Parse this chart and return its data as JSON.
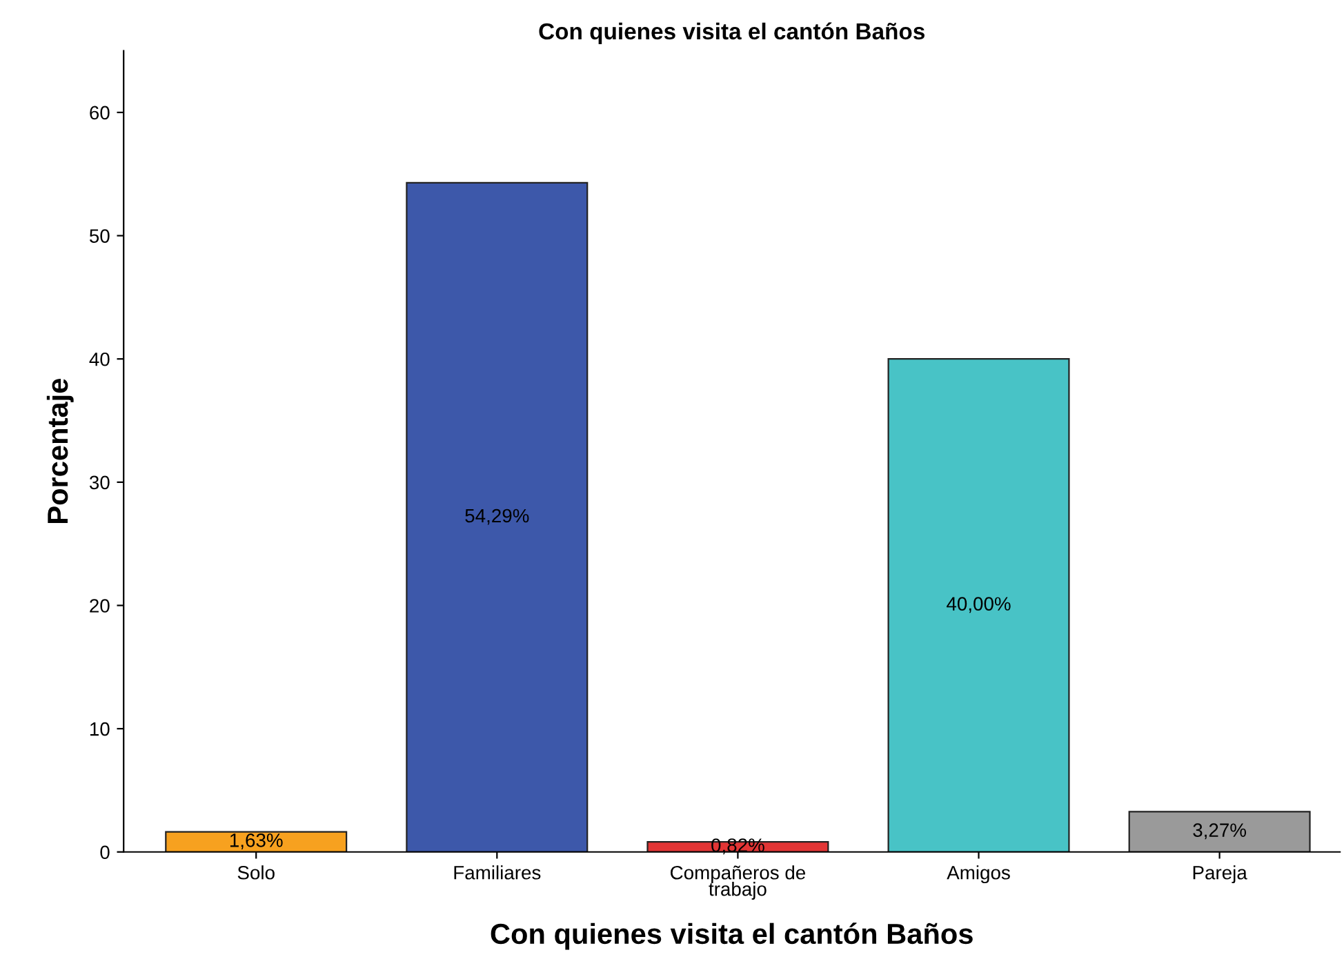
{
  "chart_data": {
    "type": "bar",
    "title": "Con quienes visita el cantón Baños",
    "xlabel": "Con quienes visita el cantón Baños",
    "ylabel": "Porcentaje",
    "categories": [
      "Solo",
      "Familiares",
      "Compañeros de\ntrabajo",
      "Amigos",
      "Pareja"
    ],
    "values": [
      1.63,
      54.29,
      0.82,
      40.0,
      3.27
    ],
    "colors": [
      "#f7a11f",
      "#3d58aa",
      "#e23535",
      "#48c3c6",
      "#9a9a9a"
    ],
    "value_labels": [
      "1,63%",
      "54,29%",
      "0,82%",
      "40,00%",
      "3,27%"
    ],
    "ylim": [
      0,
      65
    ],
    "yticks": [
      0,
      10,
      20,
      30,
      40,
      50,
      60
    ],
    "grid": false,
    "legend": false
  }
}
